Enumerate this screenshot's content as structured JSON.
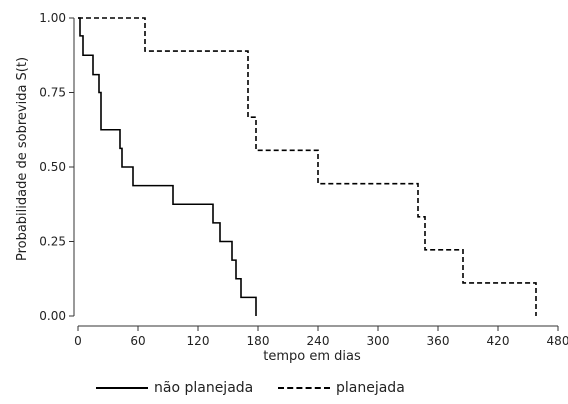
{
  "chart_data": {
    "type": "line",
    "xlabel": "tempo em dias",
    "ylabel": "Probabilidade de sobrevida S(t)",
    "xlim": [
      0,
      480
    ],
    "ylim": [
      0,
      1
    ],
    "x_ticks": [
      0,
      60,
      120,
      180,
      240,
      300,
      360,
      420,
      480
    ],
    "y_ticks": [
      0,
      0.25,
      0.5,
      0.75,
      1
    ],
    "x_tick_labels": [
      "0",
      "60",
      "120",
      "180",
      "240",
      "300",
      "360",
      "420",
      "480"
    ],
    "y_tick_labels": [
      "0.00",
      "0.25",
      "0.50",
      "0.75",
      "1.00"
    ],
    "grid": false,
    "legend_position": "bottom",
    "series": [
      {
        "name": "não planejada",
        "style": "solid",
        "color": "#000000",
        "x": [
          0,
          2,
          5,
          15,
          21,
          23,
          28,
          42,
          44,
          55,
          95,
          135,
          142,
          154,
          158,
          163,
          168,
          178
        ],
        "y": [
          1.0,
          0.94,
          0.875,
          0.81,
          0.75,
          0.625,
          0.625,
          0.5625,
          0.5,
          0.4375,
          0.375,
          0.3125,
          0.25,
          0.1875,
          0.125,
          0.0625,
          0.0625,
          0.0
        ]
      },
      {
        "name": "planejada",
        "style": "dashed",
        "color": "#000000",
        "x": [
          0,
          67,
          170,
          178,
          240,
          340,
          347,
          385,
          458
        ],
        "y": [
          1.0,
          0.889,
          0.667,
          0.556,
          0.444,
          0.333,
          0.222,
          0.111,
          0.0
        ]
      }
    ]
  }
}
